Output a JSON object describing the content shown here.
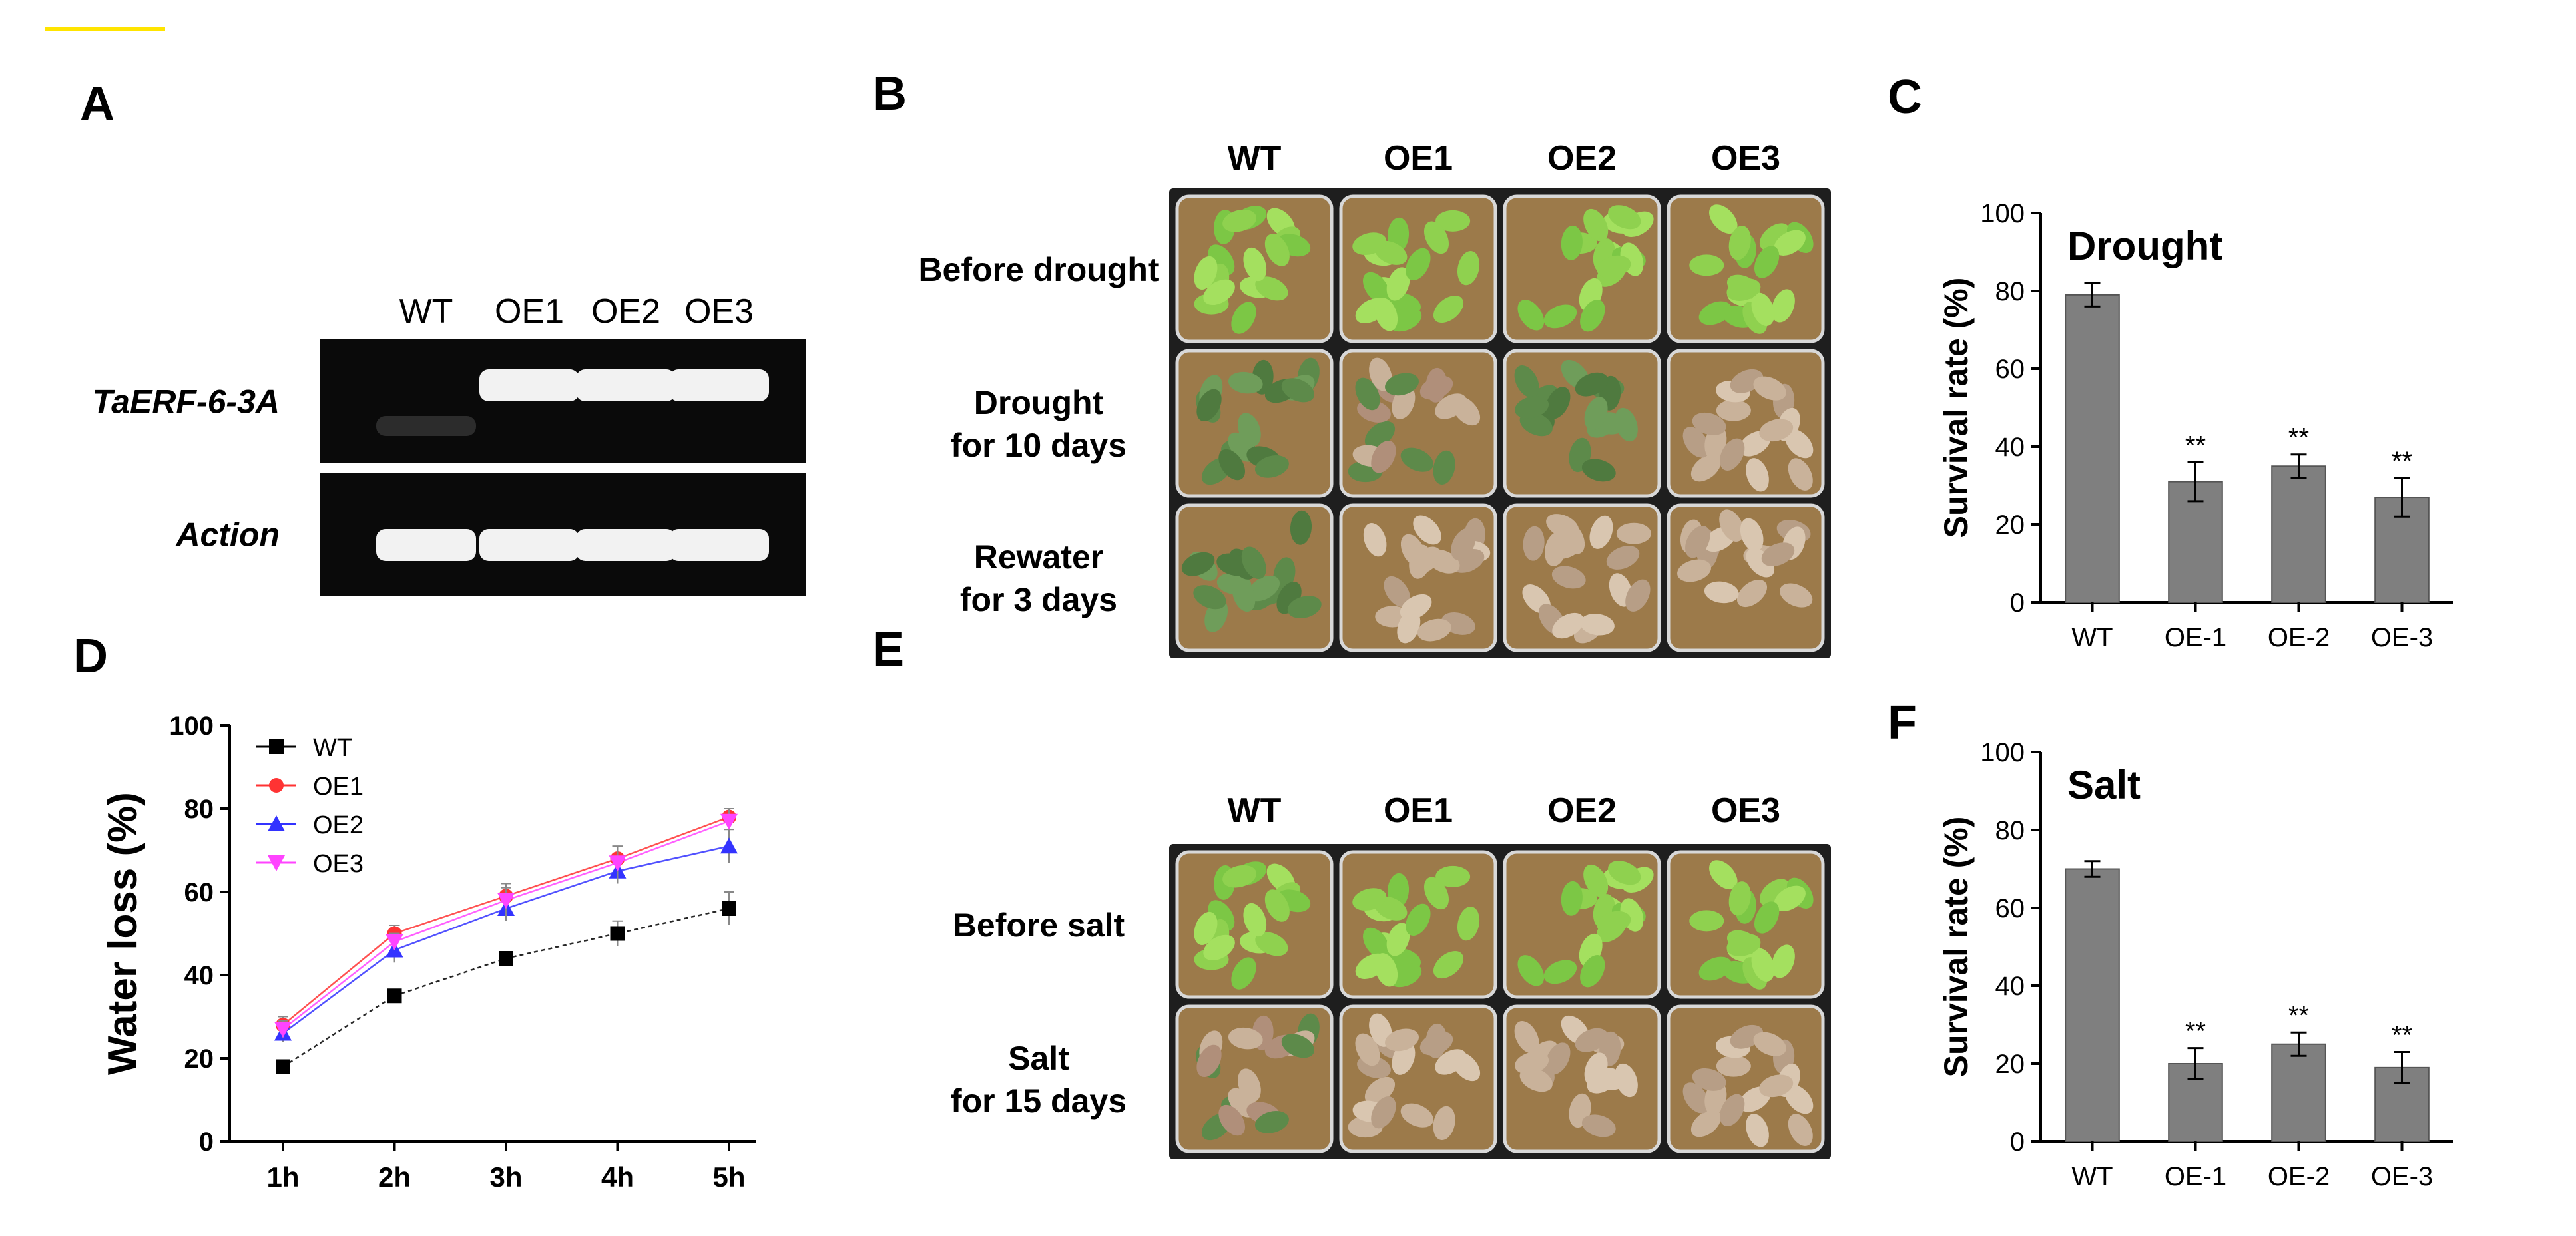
{
  "colors": {
    "bar": "#7f7f7f",
    "gel_bg": "#0a0a0a",
    "band": "#f2f2f2",
    "tray": "#2a2a2a",
    "soil": "#9c7a4a",
    "leaf_green": "#8fd14f",
    "leaf_dark": "#5d8a4a",
    "leaf_dry": "#c9b29a",
    "wt_color": "#000000",
    "oe1_color": "#ff3333",
    "oe2_color": "#3333ff",
    "oe3_color": "#ff44ff",
    "accent_line": "#ffe400"
  },
  "panels": {
    "A": {
      "letter": "A",
      "lanes": [
        "WT",
        "OE1",
        "OE2",
        "OE3"
      ],
      "rows": [
        {
          "label": "TaERF-6-3A",
          "bands": [
            0.15,
            1,
            1,
            1
          ]
        },
        {
          "label": "Action",
          "bands": [
            1,
            1,
            1,
            1
          ]
        }
      ]
    },
    "B": {
      "letter": "B",
      "columns": [
        "WT",
        "OE1",
        "OE2",
        "OE3"
      ],
      "rows": [
        {
          "label_lines": [
            "Before drought"
          ],
          "states": [
            "green",
            "green",
            "green",
            "green"
          ]
        },
        {
          "label_lines": [
            "Drought",
            "for 10 days"
          ],
          "states": [
            "dark",
            "mixed",
            "dark",
            "dry"
          ]
        },
        {
          "label_lines": [
            "Rewater",
            "for 3 days"
          ],
          "states": [
            "dark",
            "dry",
            "dry",
            "dry"
          ]
        }
      ]
    },
    "E": {
      "letter": "E",
      "columns": [
        "WT",
        "OE1",
        "OE2",
        "OE3"
      ],
      "rows": [
        {
          "label_lines": [
            "Before salt"
          ],
          "states": [
            "green",
            "green",
            "green",
            "green"
          ]
        },
        {
          "label_lines": [
            "Salt",
            "for 15 days"
          ],
          "states": [
            "mixed",
            "dry",
            "dry",
            "dry"
          ]
        }
      ]
    }
  },
  "chart_data": [
    {
      "panel": "C",
      "type": "bar",
      "title": "Drought",
      "xlabel": "",
      "ylabel": "Survival rate  (%)",
      "categories": [
        "WT",
        "OE-1",
        "OE-2",
        "OE-3"
      ],
      "values": [
        79,
        31,
        35,
        27
      ],
      "errors": [
        3,
        5,
        3,
        5
      ],
      "annotations": [
        "",
        "**",
        "**",
        "**"
      ],
      "ylim": [
        0,
        100
      ],
      "yticks": [
        0,
        20,
        40,
        60,
        80,
        100
      ],
      "grid": false
    },
    {
      "panel": "F",
      "type": "bar",
      "title": "Salt",
      "xlabel": "",
      "ylabel": "Survival rate (%)",
      "categories": [
        "WT",
        "OE-1",
        "OE-2",
        "OE-3"
      ],
      "values": [
        70,
        20,
        25,
        19
      ],
      "errors": [
        2,
        4,
        3,
        4
      ],
      "annotations": [
        "",
        "**",
        "**",
        "**"
      ],
      "ylim": [
        0,
        100
      ],
      "yticks": [
        0,
        20,
        40,
        60,
        80,
        100
      ],
      "grid": false
    },
    {
      "panel": "D",
      "type": "line",
      "title": "",
      "xlabel": "",
      "ylabel": "Water loss (%)",
      "x": [
        "1h",
        "2h",
        "3h",
        "4h",
        "5h"
      ],
      "ylim": [
        0,
        100
      ],
      "yticks": [
        0,
        20,
        40,
        60,
        80,
        100
      ],
      "legend": "top-left",
      "grid": false,
      "series": [
        {
          "name": "WT",
          "values": [
            18,
            35,
            44,
            50,
            56
          ],
          "errors": [
            1,
            1,
            1,
            3,
            4
          ],
          "marker": "square",
          "color": "#000000"
        },
        {
          "name": "OE1",
          "values": [
            28,
            50,
            59,
            68,
            78
          ],
          "errors": [
            2,
            2,
            2,
            3,
            2
          ],
          "marker": "circle",
          "color": "#ff3333"
        },
        {
          "name": "OE2",
          "values": [
            26,
            46,
            56,
            65,
            71
          ],
          "errors": [
            2,
            3,
            3,
            3,
            4
          ],
          "marker": "triangle",
          "color": "#3333ff"
        },
        {
          "name": "OE3",
          "values": [
            27,
            48,
            58,
            67,
            77
          ],
          "errors": [
            2,
            2,
            4,
            4,
            3
          ],
          "marker": "triangle-down",
          "color": "#ff44ff"
        }
      ]
    }
  ]
}
